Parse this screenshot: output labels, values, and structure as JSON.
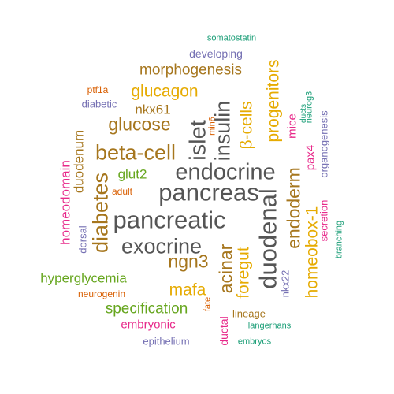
{
  "palette": {
    "teal": "#1b9e77",
    "orange": "#d95f02",
    "purple": "#7570b3",
    "magenta": "#e7298a",
    "green": "#66a61e",
    "gold": "#e6ab02",
    "brown": "#a6761d",
    "gray": "#555555"
  },
  "words": [
    {
      "text": "pancreas",
      "color": "gray",
      "rotated": false
    },
    {
      "text": "pancreatic",
      "color": "gray",
      "rotated": false
    },
    {
      "text": "endocrine",
      "color": "gray",
      "rotated": false
    },
    {
      "text": "duodenal",
      "color": "gray",
      "rotated": true
    },
    {
      "text": "exocrine",
      "color": "gray",
      "rotated": false
    },
    {
      "text": "islet",
      "color": "gray",
      "rotated": true
    },
    {
      "text": "insulin",
      "color": "gray",
      "rotated": true
    },
    {
      "text": "beta-cell",
      "color": "brown",
      "rotated": false
    },
    {
      "text": "diabetes",
      "color": "brown",
      "rotated": true
    },
    {
      "text": "glucose",
      "color": "brown",
      "rotated": false
    },
    {
      "text": "ngn3",
      "color": "brown",
      "rotated": false
    },
    {
      "text": "endoderm",
      "color": "brown",
      "rotated": true
    },
    {
      "text": "acinar",
      "color": "brown",
      "rotated": true
    },
    {
      "text": "glucagon",
      "color": "gold",
      "rotated": false
    },
    {
      "text": "progenitors",
      "color": "gold",
      "rotated": true
    },
    {
      "text": "β-cells",
      "color": "gold",
      "rotated": true
    },
    {
      "text": "foregut",
      "color": "gold",
      "rotated": true
    },
    {
      "text": "mafa",
      "color": "gold",
      "rotated": false
    },
    {
      "text": "homeobox-1",
      "color": "gold",
      "rotated": true
    },
    {
      "text": "morphogenesis",
      "color": "brown",
      "rotated": false
    },
    {
      "text": "nkx61",
      "color": "brown",
      "rotated": false
    },
    {
      "text": "duodenum",
      "color": "brown",
      "rotated": true
    },
    {
      "text": "specification",
      "color": "green",
      "rotated": false
    },
    {
      "text": "hyperglycemia",
      "color": "green",
      "rotated": false
    },
    {
      "text": "glut2",
      "color": "green",
      "rotated": false
    },
    {
      "text": "homeodomain",
      "color": "magenta",
      "rotated": true
    },
    {
      "text": "embryonic",
      "color": "magenta",
      "rotated": false
    },
    {
      "text": "mice",
      "color": "magenta",
      "rotated": true
    },
    {
      "text": "pax4",
      "color": "magenta",
      "rotated": true
    },
    {
      "text": "secretion",
      "color": "magenta",
      "rotated": true
    },
    {
      "text": "ductal",
      "color": "magenta",
      "rotated": true
    },
    {
      "text": "epithelium",
      "color": "purple",
      "rotated": false
    },
    {
      "text": "developing",
      "color": "purple",
      "rotated": false
    },
    {
      "text": "diabetic",
      "color": "purple",
      "rotated": false
    },
    {
      "text": "dorsal",
      "color": "purple",
      "rotated": true
    },
    {
      "text": "organogenesis",
      "color": "purple",
      "rotated": true
    },
    {
      "text": "nkx22",
      "color": "purple",
      "rotated": true
    },
    {
      "text": "neurogenin",
      "color": "orange",
      "rotated": false
    },
    {
      "text": "ptf1a",
      "color": "orange",
      "rotated": false
    },
    {
      "text": "adult",
      "color": "orange",
      "rotated": false
    },
    {
      "text": "fate",
      "color": "orange",
      "rotated": true
    },
    {
      "text": "min6",
      "color": "orange",
      "rotated": true
    },
    {
      "text": "lineage",
      "color": "brown",
      "rotated": false
    },
    {
      "text": "somatostatin",
      "color": "teal",
      "rotated": false
    },
    {
      "text": "langerhans",
      "color": "teal",
      "rotated": false
    },
    {
      "text": "embryos",
      "color": "teal",
      "rotated": false
    },
    {
      "text": "branching",
      "color": "teal",
      "rotated": true
    },
    {
      "text": "neurog3",
      "color": "teal",
      "rotated": true
    },
    {
      "text": "ducts",
      "color": "teal",
      "rotated": true
    }
  ]
}
